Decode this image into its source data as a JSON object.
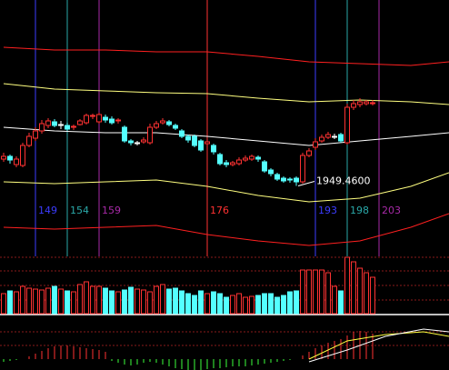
{
  "chart_data": [
    {
      "type": "candlestick",
      "x": [
        144,
        145,
        146,
        147,
        148,
        149,
        150,
        151,
        152,
        153,
        154,
        155,
        156,
        157,
        158,
        159,
        160,
        161,
        162,
        163,
        164,
        165,
        166,
        167,
        168,
        169,
        170,
        171,
        172,
        173,
        174,
        175,
        176,
        177,
        178,
        179,
        180,
        181,
        182,
        183,
        184,
        185,
        186,
        187,
        188,
        189,
        190,
        191,
        192,
        193,
        194,
        195,
        196,
        197,
        198,
        199,
        200,
        201,
        202
      ],
      "open": [
        1979,
        1982,
        1973,
        1972,
        1994,
        2002,
        2010,
        2016,
        2020,
        2017,
        2016,
        2014,
        2017,
        2019,
        2026,
        2020,
        2025,
        2023,
        2021,
        2014,
        1999,
        1997,
        1998,
        1997,
        2014,
        2019,
        2020,
        2016,
        2010,
        2004,
        2004,
        1999,
        1996,
        1994,
        1984,
        1975,
        1973,
        1974,
        1978,
        1979,
        1981,
        1976,
        1967,
        1962,
        1958,
        1957,
        1958,
        1954,
        1983,
        1992,
        1999,
        2003,
        2004,
        2006,
        1997,
        2036,
        2039,
        2040,
        2040
      ],
      "high": [
        1986,
        1984,
        1982,
        1997,
        2008,
        2014,
        2022,
        2024,
        2023,
        2021,
        2019,
        2017,
        2023,
        2029,
        2029,
        2030,
        2028,
        2026,
        2024,
        2016,
        2001,
        1999,
        2003,
        2018,
        2021,
        2024,
        2022,
        2018,
        2012,
        2006,
        2006,
        2001,
        2002,
        1996,
        1986,
        1978,
        1977,
        1981,
        1983,
        1984,
        1983,
        1978,
        1969,
        1964,
        1960,
        1959,
        1960,
        1986,
        1991,
        2002,
        2006,
        2009,
        2007,
        2008,
        2040,
        2044,
        2046,
        2044,
        2044
      ],
      "low": [
        1976,
        1974,
        1970,
        1970,
        1992,
        1999,
        2007,
        2013,
        2014,
        2012,
        2010,
        2011,
        2016,
        2017,
        2023,
        2018,
        2019,
        2017,
        2018,
        1997,
        1994,
        1994,
        1996,
        1995,
        2012,
        2017,
        2015,
        2011,
        2002,
        1997,
        1992,
        1987,
        1994,
        1984,
        1972,
        1970,
        1971,
        1972,
        1976,
        1977,
        1976,
        1964,
        1960,
        1955,
        1953,
        1953,
        1949.46,
        1952,
        1981,
        1989,
        1997,
        2001,
        2001,
        1997,
        1995,
        2033,
        2036,
        2038,
        2038
      ],
      "close": [
        1982,
        1978,
        1979,
        1994,
        2004,
        2010,
        2018,
        2021,
        2016,
        2017,
        2012,
        2015,
        2021,
        2027,
        2027,
        2028,
        2022,
        2019,
        2022,
        1999,
        1997,
        1997,
        2000,
        2014,
        2018,
        2021,
        2017,
        2013,
        2004,
        2000,
        1994,
        1989,
        1998,
        1987,
        1974,
        1973,
        1975,
        1978,
        1980,
        1982,
        1979,
        1966,
        1963,
        1957,
        1955,
        1956,
        1954,
        1983,
        1988,
        1998,
        2003,
        2006,
        2004,
        1999,
        2036,
        2040,
        2042,
        2042,
        2041
      ],
      "up_color": "#ff3232",
      "down_color": "#54ffff",
      "flat_color": "#ffffff",
      "ylim": [
        1874,
        2154
      ],
      "xticks": [
        149,
        154,
        159,
        176,
        193,
        198,
        203
      ],
      "xtick_colors": [
        "#3c3cff",
        "#2aa8a8",
        "#a82aa8",
        "#ff3232",
        "#3c3cff",
        "#2aa8a8",
        "#a82aa8"
      ],
      "annotation": "1949.4600",
      "series": [
        {
          "color": "#ff2020",
          "x": [
            144,
            152,
            160,
            168,
            176,
            184,
            192,
            200,
            208,
            214
          ],
          "values": [
            2102,
            2099,
            2099,
            2097,
            2097,
            2092,
            2086,
            2084,
            2082,
            2086
          ]
        },
        {
          "color": "#ffff80",
          "x": [
            144,
            152,
            160,
            168,
            176,
            184,
            192,
            200,
            208,
            214
          ],
          "values": [
            2062,
            2056,
            2054,
            2052,
            2051,
            2046,
            2042,
            2044,
            2042,
            2039
          ]
        },
        {
          "color": "#ffffff",
          "x": [
            144,
            152,
            160,
            168,
            176,
            184,
            192,
            200,
            208,
            214
          ],
          "values": [
            2014,
            2010,
            2008,
            2008,
            2004,
            1999,
            1994,
            1999,
            2004,
            2008
          ]
        },
        {
          "color": "#ffff80",
          "x": [
            144,
            152,
            160,
            168,
            176,
            184,
            192,
            200,
            208,
            214
          ],
          "values": [
            1954,
            1952,
            1954,
            1956,
            1949,
            1939,
            1932,
            1936,
            1949,
            1964
          ]
        },
        {
          "color": "#ff2020",
          "x": [
            144,
            152,
            160,
            168,
            176,
            184,
            192,
            200,
            208,
            214
          ],
          "values": [
            1904,
            1902,
            1904,
            1906,
            1896,
            1889,
            1884,
            1889,
            1904,
            1919
          ]
        }
      ]
    },
    {
      "type": "bar",
      "x": [
        144,
        145,
        146,
        147,
        148,
        149,
        150,
        151,
        152,
        153,
        154,
        155,
        156,
        157,
        158,
        159,
        160,
        161,
        162,
        163,
        164,
        165,
        166,
        167,
        168,
        169,
        170,
        171,
        172,
        173,
        174,
        175,
        176,
        177,
        178,
        179,
        180,
        181,
        182,
        183,
        184,
        185,
        186,
        187,
        188,
        189,
        190,
        191,
        192,
        193,
        194,
        195,
        196,
        197,
        198,
        199,
        200,
        201,
        202
      ],
      "values": [
        22,
        25,
        24,
        30,
        28,
        27,
        26,
        28,
        30,
        27,
        25,
        24,
        32,
        35,
        30,
        30,
        28,
        25,
        24,
        26,
        29,
        27,
        26,
        24,
        30,
        32,
        27,
        28,
        25,
        22,
        20,
        25,
        22,
        24,
        22,
        18,
        20,
        22,
        18,
        19,
        20,
        22,
        22,
        18,
        20,
        24,
        25,
        48,
        48,
        48,
        48,
        45,
        30,
        25,
        62,
        57,
        50,
        45,
        40
      ],
      "ylim": [
        0,
        65
      ]
    },
    {
      "type": "macd",
      "x": [
        144,
        145,
        146,
        147,
        148,
        149,
        150,
        151,
        152,
        153,
        154,
        155,
        156,
        157,
        158,
        159,
        160,
        161,
        162,
        163,
        164,
        165,
        166,
        167,
        168,
        169,
        170,
        171,
        172,
        173,
        174,
        175,
        176,
        177,
        178,
        179,
        180,
        181,
        182,
        183,
        184,
        185,
        186,
        187,
        188,
        189,
        190,
        191,
        192,
        193,
        194,
        195,
        196,
        197,
        198,
        199,
        200,
        201,
        202
      ],
      "values": [
        -3,
        -2,
        -1,
        0,
        3,
        6,
        9,
        12,
        14,
        15,
        15,
        14,
        13,
        12,
        11,
        10,
        8,
        -2,
        -4,
        -6,
        -7,
        -6,
        -4,
        -3,
        -4,
        -6,
        -8,
        -10,
        -11,
        -12,
        -12,
        -12,
        -11,
        -10,
        -10,
        -9,
        -8,
        -8,
        -8,
        -7,
        -6,
        -5,
        -4,
        -3,
        -2,
        -1,
        0,
        4,
        8,
        12,
        15,
        18,
        20,
        22,
        26,
        30,
        31,
        30,
        28
      ],
      "pos_color": "#ff3232",
      "neg_color": "#3cff3c",
      "ylim": [
        -12,
        45
      ],
      "series": [
        {
          "color": "#ffff40",
          "x": [
            192,
            198,
            204,
            210,
            214
          ],
          "values": [
            0,
            20,
            27,
            30,
            25
          ]
        },
        {
          "color": "#ffffff",
          "x": [
            192,
            198,
            204,
            210,
            214
          ],
          "values": [
            -3,
            10,
            25,
            33,
            30
          ]
        }
      ]
    }
  ]
}
